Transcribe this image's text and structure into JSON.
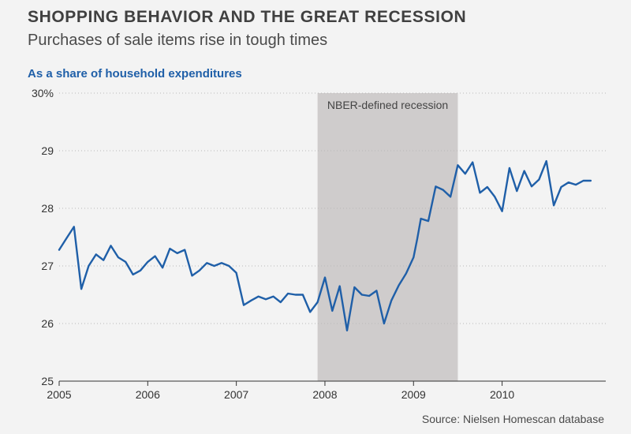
{
  "header": {
    "title": "SHOPPING BEHAVIOR AND THE GREAT RECESSION",
    "subtitle": "Purchases of sale items rise in tough times",
    "ylabel": "As a share of household expenditures",
    "source": "Source: Nielsen Homescan database"
  },
  "chart_data": {
    "type": "line",
    "title": "SHOPPING BEHAVIOR AND THE GREAT RECESSION",
    "subtitle": "Purchases of sale items rise in tough times",
    "ylabel": "As a share of household expenditures",
    "xlabel": "",
    "xlim": [
      2005,
      2011.17
    ],
    "ylim": [
      25,
      30
    ],
    "x_ticks": [
      2005,
      2006,
      2007,
      2008,
      2009,
      2010
    ],
    "x_tick_labels": [
      "2005",
      "2006",
      "2007",
      "2008",
      "2009",
      "2010"
    ],
    "y_ticks": [
      25,
      26,
      27,
      28,
      29,
      30
    ],
    "y_tick_labels": [
      "25",
      "26",
      "27",
      "28",
      "29",
      "30%"
    ],
    "grid": "horizontal-dotted",
    "line_color": "#1f5fa8",
    "shade_color": "#cfcccc",
    "recession": {
      "start": 2007.917,
      "end": 2009.5,
      "label": "NBER-defined recession"
    },
    "series": [
      {
        "x": [
          2005.0,
          2005.083,
          2005.167,
          2005.25,
          2005.333,
          2005.417,
          2005.5,
          2005.583,
          2005.667,
          2005.75,
          2005.833,
          2005.917,
          2006.0,
          2006.083,
          2006.167,
          2006.25,
          2006.333,
          2006.417,
          2006.5,
          2006.583,
          2006.667,
          2006.75,
          2006.833,
          2006.917,
          2007.0,
          2007.083,
          2007.167,
          2007.25,
          2007.333,
          2007.417,
          2007.5,
          2007.583,
          2007.667,
          2007.75,
          2007.833,
          2007.917,
          2008.0,
          2008.083,
          2008.167,
          2008.25,
          2008.333,
          2008.417,
          2008.5,
          2008.583,
          2008.667,
          2008.75,
          2008.833,
          2008.917,
          2009.0,
          2009.042,
          2009.083,
          2009.167,
          2009.25,
          2009.333,
          2009.417,
          2009.5,
          2009.583,
          2009.667,
          2009.75,
          2009.833,
          2009.917,
          2010.0,
          2010.083,
          2010.167,
          2010.25,
          2010.333,
          2010.417,
          2010.5,
          2010.583,
          2010.667,
          2010.75,
          2010.833,
          2010.917,
          2011.0
        ],
        "values": [
          27.28,
          27.48,
          27.68,
          26.6,
          27.0,
          27.2,
          27.1,
          27.35,
          27.15,
          27.07,
          26.85,
          26.92,
          27.07,
          27.17,
          26.97,
          27.3,
          27.22,
          27.28,
          26.83,
          26.92,
          27.05,
          27.0,
          27.05,
          27.0,
          26.88,
          26.32,
          26.4,
          26.47,
          26.42,
          26.47,
          26.37,
          26.52,
          26.5,
          26.5,
          26.2,
          26.37,
          26.8,
          26.22,
          26.65,
          25.88,
          26.63,
          26.5,
          26.48,
          26.57,
          26.0,
          26.4,
          26.66,
          26.87,
          27.15,
          27.47,
          27.82,
          27.78,
          28.38,
          28.32,
          28.2,
          28.75,
          28.6,
          28.8,
          28.27,
          28.37,
          28.2,
          27.95,
          28.7,
          28.3,
          28.65,
          28.38,
          28.5,
          28.82,
          28.05,
          28.37,
          28.45,
          28.41,
          28.48,
          28.48
        ]
      }
    ]
  }
}
